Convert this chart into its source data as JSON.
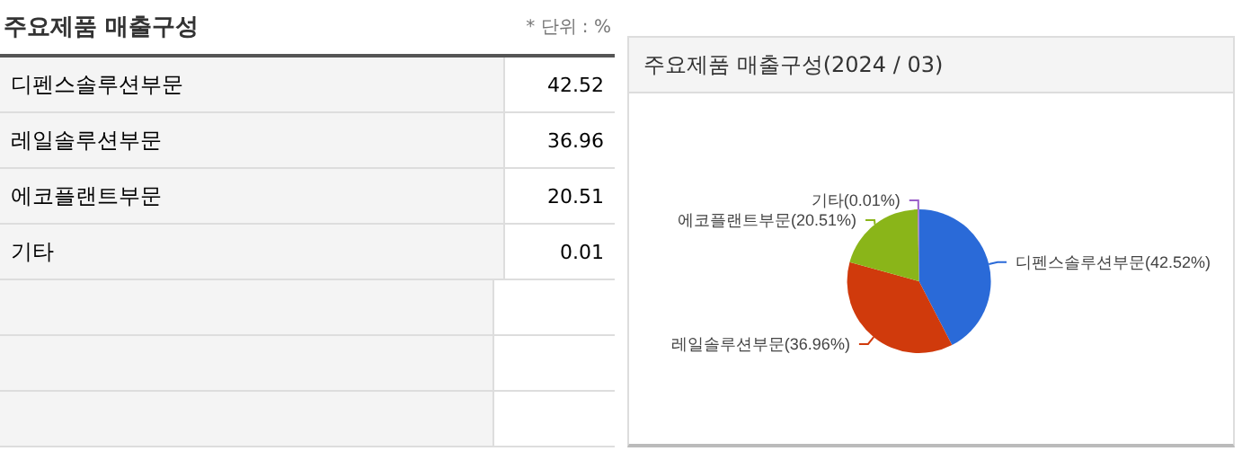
{
  "chart_data": [
    {
      "type": "other",
      "title": "주요제품 매출구성",
      "annotations": [
        "* 단위 : %"
      ],
      "categories": [
        "디펜스솔루션부문",
        "레일솔루션부문",
        "에코플랜트부문",
        "기타"
      ],
      "values": [
        42.52,
        36.96,
        20.51,
        0.01
      ],
      "data_labels": true
    },
    {
      "type": "pie",
      "title": "주요제품 매출구성(2024 / 03)",
      "categories": [
        "디펜스솔루션부문",
        "레일솔루션부문",
        "에코플랜트부문",
        "기타"
      ],
      "values": [
        42.52,
        36.96,
        20.51,
        0.01
      ],
      "colors": [
        "#2a6ad8",
        "#d03a0c",
        "#8ab519",
        "#9a5fc9"
      ],
      "value_labels": [
        "(42.52%)",
        "(36.96%)",
        "(20.51%)",
        "(0.01%)"
      ]
    }
  ]
}
